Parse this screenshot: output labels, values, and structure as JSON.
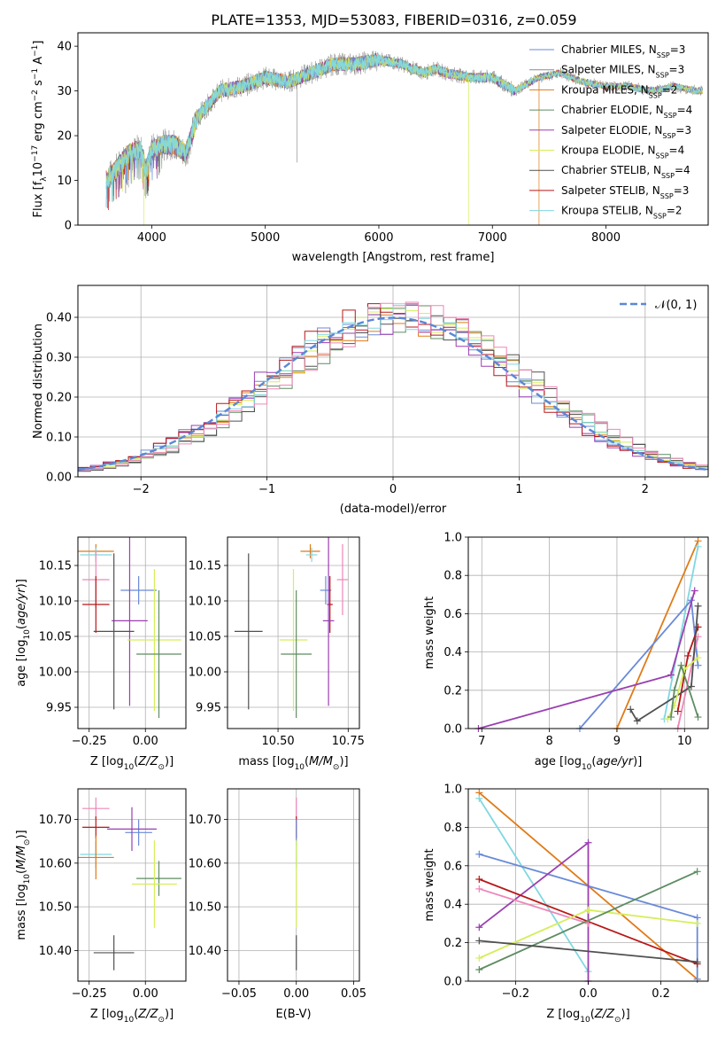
{
  "figure_title": "PLATE=1353, MJD=53083, FIBERID=0316, z=0.059",
  "colors": {
    "cm": "#6a8ad8",
    "sm": "#8a8a8a",
    "km": "#e07b18",
    "ce": "#5e8c62",
    "se": "#9a3fb0",
    "ke": "#d5ee5a",
    "cs": "#505050",
    "ss": "#b81818",
    "ks": "#80d8e0",
    "pink": "#ee86b8",
    "gaussian": "#5b87d6"
  },
  "legend_top": [
    {
      "key": "cm",
      "label": "Chabrier MILES, N",
      "sub": "SSP",
      "tail": "=3"
    },
    {
      "key": "sm",
      "label": "Salpeter MILES, N",
      "sub": "SSP",
      "tail": "=3"
    },
    {
      "key": "km",
      "label": "Kroupa MILES, N",
      "sub": "SSP",
      "tail": "=2"
    },
    {
      "key": "ce",
      "label": "Chabrier ELODIE, N",
      "sub": "SSP",
      "tail": "=4"
    },
    {
      "key": "se",
      "label": "Salpeter ELODIE, N",
      "sub": "SSP",
      "tail": "=3"
    },
    {
      "key": "ke",
      "label": "Kroupa ELODIE, N",
      "sub": "SSP",
      "tail": "=4"
    },
    {
      "key": "cs",
      "label": "Chabrier STELIB, N",
      "sub": "SSP",
      "tail": "=4"
    },
    {
      "key": "ss",
      "label": "Salpeter STELIB, N",
      "sub": "SSP",
      "tail": "=3"
    },
    {
      "key": "ks",
      "label": "Kroupa STELIB, N",
      "sub": "SSP",
      "tail": "=2"
    }
  ],
  "legend_hist": {
    "label": "𝒩(0, 1)"
  },
  "chart_data": [
    {
      "id": "spectrum",
      "type": "line",
      "xlabel": "wavelength [Angstrom, rest frame]",
      "ylabel": "Flux [f_λ 10^-17 erg cm^-2 s^-1 A^-1]",
      "xlim": [
        3350,
        8900
      ],
      "ylim": [
        0,
        43
      ],
      "xticks": [
        4000,
        5000,
        6000,
        7000,
        8000
      ],
      "yticks": [
        0,
        10,
        20,
        30,
        40
      ],
      "grid": false,
      "legend": "upper-right",
      "continuum": [
        [
          3600,
          10
        ],
        [
          3700,
          13
        ],
        [
          3800,
          16
        ],
        [
          3900,
          17
        ],
        [
          3950,
          12
        ],
        [
          4000,
          17
        ],
        [
          4100,
          18
        ],
        [
          4200,
          18
        ],
        [
          4300,
          16
        ],
        [
          4400,
          24
        ],
        [
          4500,
          27
        ],
        [
          4600,
          30
        ],
        [
          4800,
          31
        ],
        [
          5000,
          33
        ],
        [
          5200,
          32
        ],
        [
          5400,
          34
        ],
        [
          5600,
          36
        ],
        [
          5800,
          36
        ],
        [
          6000,
          37
        ],
        [
          6200,
          36
        ],
        [
          6400,
          34
        ],
        [
          6500,
          35
        ],
        [
          6600,
          34
        ],
        [
          6800,
          33
        ],
        [
          7000,
          33
        ],
        [
          7200,
          30
        ],
        [
          7400,
          33
        ],
        [
          7600,
          34
        ],
        [
          7800,
          32
        ],
        [
          8000,
          31
        ],
        [
          8200,
          31
        ],
        [
          8400,
          30
        ],
        [
          8600,
          31
        ],
        [
          8800,
          30
        ]
      ],
      "dips": [
        [
          3930,
          0
        ],
        [
          5280,
          14
        ],
        [
          6790,
          0
        ],
        [
          7410,
          0
        ]
      ]
    },
    {
      "id": "residuals",
      "type": "histogram",
      "xlabel": "(data-model)/error",
      "ylabel": "Normed distribution",
      "xlim": [
        -2.5,
        2.5
      ],
      "ylim": [
        0,
        0.48
      ],
      "xticks": [
        -2,
        -1,
        0,
        1,
        2
      ],
      "yticks": [
        0.0,
        0.1,
        0.2,
        0.3,
        0.4
      ],
      "grid": true,
      "legend": "upper-right",
      "bin_width": 0.1,
      "reference_curve": "normal distribution mean 0 sigma 1"
    },
    {
      "id": "age_vs_Z",
      "type": "scatter",
      "xlabel": "Z [log10(Z/Z⊙)]",
      "ylabel": "age  [log10(age/yr)]",
      "xlim": [
        -0.3,
        0.18
      ],
      "ylim": [
        9.92,
        10.19
      ],
      "xticks": [
        -0.25,
        0.0
      ],
      "yticks": [
        9.95,
        10.0,
        10.05,
        10.1,
        10.15
      ],
      "grid": true,
      "points": [
        {
          "key": "km",
          "x": -0.22,
          "y": 10.17,
          "xerr": 0.08,
          "yerr": 0.01
        },
        {
          "key": "ks",
          "x": -0.22,
          "y": 10.165,
          "xerr": 0.07,
          "yerr": 0.01
        },
        {
          "key": "pink",
          "x": -0.22,
          "y": 10.13,
          "xerr": 0.06,
          "yerr": 0.04
        },
        {
          "key": "cm",
          "x": -0.03,
          "y": 10.115,
          "xerr": 0.08,
          "yerr": 0.02
        },
        {
          "key": "ss",
          "x": -0.22,
          "y": 10.095,
          "xerr": 0.06,
          "yerr": 0.04
        },
        {
          "key": "se",
          "x": -0.07,
          "y": 10.072,
          "xerr": 0.08,
          "yerr": 0.12
        },
        {
          "key": "cs",
          "x": -0.14,
          "y": 10.057,
          "xerr": 0.09,
          "yerr": 0.11
        },
        {
          "key": "ke",
          "x": 0.04,
          "y": 10.045,
          "xerr": 0.12,
          "yerr": 0.1
        },
        {
          "key": "ce",
          "x": 0.06,
          "y": 10.025,
          "xerr": 0.1,
          "yerr": 0.09
        }
      ]
    },
    {
      "id": "age_vs_mass",
      "type": "scatter",
      "xlabel": "mass [log10(M/M⊙)]",
      "ylabel": "",
      "xlim": [
        10.32,
        10.79
      ],
      "ylim": [
        9.92,
        10.19
      ],
      "xticks": [
        10.5,
        10.75
      ],
      "yticks": [
        9.95,
        10.0,
        10.05,
        10.1,
        10.15
      ],
      "tick_labels_x": [
        "10.50",
        "10.75"
      ],
      "grid": true,
      "points": [
        {
          "key": "km",
          "x": 10.615,
          "y": 10.17,
          "xerr": 0.035,
          "yerr": 0.01
        },
        {
          "key": "ks",
          "x": 10.62,
          "y": 10.165,
          "xerr": 0.02,
          "yerr": 0.01
        },
        {
          "key": "pink",
          "x": 10.73,
          "y": 10.13,
          "xerr": 0.02,
          "yerr": 0.05
        },
        {
          "key": "cm",
          "x": 10.67,
          "y": 10.115,
          "xerr": 0.02,
          "yerr": 0.02
        },
        {
          "key": "ss",
          "x": 10.685,
          "y": 10.095,
          "xerr": 0.01,
          "yerr": 0.04
        },
        {
          "key": "se",
          "x": 10.68,
          "y": 10.072,
          "xerr": 0.02,
          "yerr": 0.12
        },
        {
          "key": "cs",
          "x": 10.395,
          "y": 10.057,
          "xerr": 0.05,
          "yerr": 0.11
        },
        {
          "key": "ke",
          "x": 10.555,
          "y": 10.045,
          "xerr": 0.05,
          "yerr": 0.1
        },
        {
          "key": "ce",
          "x": 10.565,
          "y": 10.025,
          "xerr": 0.055,
          "yerr": 0.09
        }
      ]
    },
    {
      "id": "weight_vs_age",
      "type": "line",
      "xlabel": "age  [log10(age/yr)]",
      "ylabel": "mass weight",
      "xlim": [
        6.8,
        10.35
      ],
      "ylim": [
        0,
        1
      ],
      "xticks": [
        7,
        8,
        9,
        10
      ],
      "yticks": [
        0.0,
        0.2,
        0.4,
        0.6,
        0.8,
        1.0
      ],
      "grid": true,
      "series": [
        {
          "key": "km",
          "x": [
            9.0,
            10.2
          ],
          "y": [
            0.0,
            0.98
          ]
        },
        {
          "key": "ks",
          "x": [
            9.7,
            10.2
          ],
          "y": [
            0.05,
            0.95
          ]
        },
        {
          "key": "cm",
          "x": [
            8.45,
            10.1,
            10.2
          ],
          "y": [
            0.0,
            0.67,
            0.33
          ]
        },
        {
          "key": "se",
          "x": [
            6.95,
            9.8,
            10.15
          ],
          "y": [
            0.0,
            0.28,
            0.72
          ]
        },
        {
          "key": "pink",
          "x": [
            9.9,
            10.2
          ],
          "y": [
            0.0,
            0.48
          ]
        },
        {
          "key": "ss",
          "x": [
            9.9,
            10.05,
            10.2
          ],
          "y": [
            0.09,
            0.38,
            0.53
          ]
        },
        {
          "key": "cs",
          "x": [
            9.2,
            9.3,
            10.1,
            10.2
          ],
          "y": [
            0.1,
            0.04,
            0.22,
            0.64
          ]
        },
        {
          "key": "ke",
          "x": [
            9.75,
            9.85,
            10.0,
            10.2
          ],
          "y": [
            0.05,
            0.12,
            0.31,
            0.37
          ]
        },
        {
          "key": "ce",
          "x": [
            9.8,
            9.85,
            9.95,
            10.2
          ],
          "y": [
            0.06,
            0.2,
            0.33,
            0.06
          ]
        }
      ]
    },
    {
      "id": "mass_vs_Z",
      "type": "scatter",
      "xlabel": "Z [log10(Z/Z⊙)]",
      "ylabel": "mass [log10(M/M⊙)]",
      "xlim": [
        -0.3,
        0.18
      ],
      "ylim": [
        10.33,
        10.77
      ],
      "xticks": [
        -0.25,
        0.0
      ],
      "yticks": [
        10.4,
        10.5,
        10.6,
        10.7
      ],
      "grid": true,
      "points": [
        {
          "key": "pink",
          "x": -0.22,
          "y": 10.725,
          "xerr": 0.06,
          "yerr": 0.025
        },
        {
          "key": "ss",
          "x": -0.22,
          "y": 10.682,
          "xerr": 0.06,
          "yerr": 0.025
        },
        {
          "key": "cm",
          "x": -0.03,
          "y": 10.67,
          "xerr": 0.06,
          "yerr": 0.03
        },
        {
          "key": "se",
          "x": -0.06,
          "y": 10.678,
          "xerr": 0.11,
          "yerr": 0.05
        },
        {
          "key": "ks",
          "x": -0.22,
          "y": 10.62,
          "xerr": 0.07,
          "yerr": 0.03
        },
        {
          "key": "km",
          "x": -0.22,
          "y": 10.613,
          "xerr": 0.08,
          "yerr": 0.05
        },
        {
          "key": "ce",
          "x": 0.06,
          "y": 10.565,
          "xerr": 0.1,
          "yerr": 0.04
        },
        {
          "key": "ke",
          "x": 0.04,
          "y": 10.552,
          "xerr": 0.1,
          "yerr": 0.1
        },
        {
          "key": "cs",
          "x": -0.14,
          "y": 10.395,
          "xerr": 0.09,
          "yerr": 0.04
        }
      ]
    },
    {
      "id": "mass_vs_ebv",
      "type": "scatter",
      "xlabel": "E(B-V)",
      "ylabel": "",
      "xlim": [
        -0.06,
        0.055
      ],
      "ylim": [
        10.33,
        10.77
      ],
      "xticks": [
        -0.05,
        0.0,
        0.05
      ],
      "yticks": [
        10.4,
        10.5,
        10.6,
        10.7
      ],
      "tick_labels_x": [
        "−0.05",
        "0.00",
        "0.05"
      ],
      "grid": true,
      "points": [
        {
          "key": "pink",
          "x": 0,
          "y": 10.725,
          "xerr": 0,
          "yerr": 0.025
        },
        {
          "key": "ss",
          "x": 0,
          "y": 10.682,
          "xerr": 0,
          "yerr": 0.025
        },
        {
          "key": "cm",
          "x": 0,
          "y": 10.67,
          "xerr": 0,
          "yerr": 0.03
        },
        {
          "key": "ks",
          "x": 0,
          "y": 10.62,
          "xerr": 0,
          "yerr": 0.03
        },
        {
          "key": "ke",
          "x": 0,
          "y": 10.552,
          "xerr": 0,
          "yerr": 0.1
        },
        {
          "key": "cs",
          "x": 0,
          "y": 10.395,
          "xerr": 0,
          "yerr": 0.04
        }
      ]
    },
    {
      "id": "weight_vs_Z",
      "type": "line",
      "xlabel": "Z [log10(Z/Z⊙)]",
      "ylabel": "mass weight",
      "xlim": [
        -0.33,
        0.33
      ],
      "ylim": [
        0,
        1
      ],
      "xticks": [
        -0.2,
        0.0,
        0.2
      ],
      "yticks": [
        0.0,
        0.2,
        0.4,
        0.6,
        0.8,
        1.0
      ],
      "tick_labels_x": [
        "−0.2",
        "0.0",
        "0.2"
      ],
      "grid": true,
      "series": [
        {
          "key": "km",
          "x": [
            -0.3,
            0.3
          ],
          "y": [
            0.98,
            0.01
          ]
        },
        {
          "key": "ks",
          "x": [
            -0.3,
            0.0
          ],
          "y": [
            0.95,
            0.05
          ]
        },
        {
          "key": "cm",
          "x": [
            -0.3,
            0.3,
            0.3
          ],
          "y": [
            0.66,
            0.33,
            0.01
          ]
        },
        {
          "key": "se",
          "x": [
            -0.3,
            0.0,
            0.0
          ],
          "y": [
            0.28,
            0.72,
            0.0
          ]
        },
        {
          "key": "ss",
          "x": [
            -0.3,
            0.3
          ],
          "y": [
            0.53,
            0.09
          ]
        },
        {
          "key": "pink",
          "x": [
            -0.3,
            0.0
          ],
          "y": [
            0.48,
            0.3
          ]
        },
        {
          "key": "ke",
          "x": [
            -0.3,
            0.0,
            0.3
          ],
          "y": [
            0.12,
            0.37,
            0.3
          ]
        },
        {
          "key": "ce",
          "x": [
            -0.3,
            0.3
          ],
          "y": [
            0.06,
            0.57
          ]
        },
        {
          "key": "cs",
          "x": [
            -0.3,
            0.3
          ],
          "y": [
            0.21,
            0.1
          ]
        }
      ]
    }
  ]
}
